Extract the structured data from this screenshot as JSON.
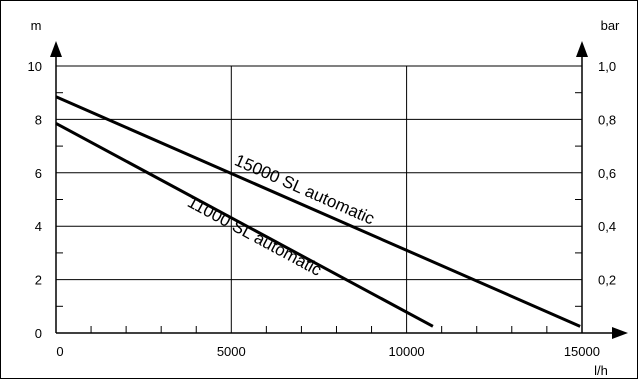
{
  "chart_data": {
    "type": "line",
    "title": "",
    "xlabel": "l/h",
    "ylabel_left": "m",
    "ylabel_right": "bar",
    "xlim": [
      0,
      16000
    ],
    "ylim": [
      0,
      11
    ],
    "x_ticks": [
      0,
      5000,
      10000,
      15000
    ],
    "y_ticks_left": [
      "0",
      "2",
      "4",
      "6",
      "8",
      "10"
    ],
    "y_ticks_right": [
      "0,2",
      "0,4",
      "0,6",
      "0,8",
      "1,0"
    ],
    "grid": true,
    "series": [
      {
        "name": "15000 SL automatic",
        "x": [
          0,
          14950
        ],
        "y": [
          8.85,
          0.25
        ]
      },
      {
        "name": "11000 SL automatic",
        "x": [
          0,
          10750
        ],
        "y": [
          7.85,
          0.25
        ]
      }
    ]
  }
}
